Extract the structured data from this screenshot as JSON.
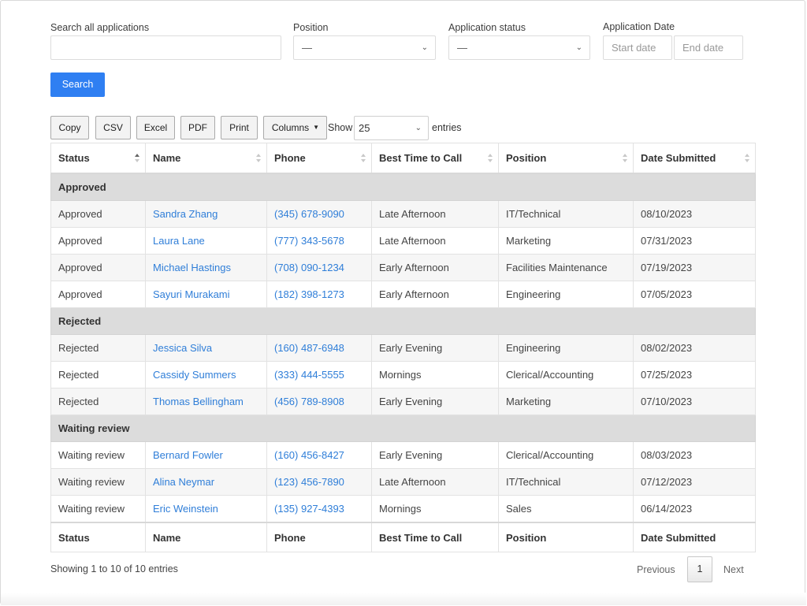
{
  "filters": {
    "search_label": "Search all applications",
    "search_value": "",
    "position_label": "Position",
    "position_value": "—",
    "status_label": "Application status",
    "status_value": "—",
    "date_label": "Application Date",
    "start_placeholder": "Start date",
    "end_placeholder": "End date",
    "search_button": "Search"
  },
  "toolbar": {
    "buttons": [
      "Copy",
      "CSV",
      "Excel",
      "PDF",
      "Print",
      "Columns"
    ],
    "show_label": "Show",
    "page_length": "25",
    "entries_label": "entries"
  },
  "table": {
    "headers": [
      "Status",
      "Name",
      "Phone",
      "Best Time to Call",
      "Position",
      "Date Submitted"
    ],
    "sort_active_column": "Status",
    "groups": [
      {
        "label": "Approved",
        "rows": [
          [
            "Approved",
            "Sandra Zhang",
            "(345) 678-9090",
            "Late Afternoon",
            "IT/Technical",
            "08/10/2023"
          ],
          [
            "Approved",
            "Laura Lane",
            "(777) 343-5678",
            "Late Afternoon",
            "Marketing",
            "07/31/2023"
          ],
          [
            "Approved",
            "Michael Hastings",
            "(708) 090-1234",
            "Early Afternoon",
            "Facilities Maintenance",
            "07/19/2023"
          ],
          [
            "Approved",
            "Sayuri Murakami",
            "(182) 398-1273",
            "Early Afternoon",
            "Engineering",
            "07/05/2023"
          ]
        ]
      },
      {
        "label": "Rejected",
        "rows": [
          [
            "Rejected",
            "Jessica Silva",
            "(160) 487-6948",
            "Early Evening",
            "Engineering",
            "08/02/2023"
          ],
          [
            "Rejected",
            "Cassidy Summers",
            "(333) 444-5555",
            "Mornings",
            "Clerical/Accounting",
            "07/25/2023"
          ],
          [
            "Rejected",
            "Thomas Bellingham",
            "(456) 789-8908",
            "Early Evening",
            "Marketing",
            "07/10/2023"
          ]
        ]
      },
      {
        "label": "Waiting review",
        "rows": [
          [
            "Waiting review",
            "Bernard Fowler",
            "(160) 456-8427",
            "Early Evening",
            "Clerical/Accounting",
            "08/03/2023"
          ],
          [
            "Waiting review",
            "Alina Neymar",
            "(123) 456-7890",
            "Late Afternoon",
            "IT/Technical",
            "07/12/2023"
          ],
          [
            "Waiting review",
            "Eric Weinstein",
            "(135) 927-4393",
            "Mornings",
            "Sales",
            "06/14/2023"
          ]
        ]
      }
    ]
  },
  "footer": {
    "info": "Showing 1 to 10 of 10 entries",
    "previous": "Previous",
    "current_page": "1",
    "next": "Next"
  },
  "colors": {
    "accent": "#2f7ff2",
    "link": "#2f7ed8",
    "group_bg": "#dcdcdc",
    "stripe_bg": "#f6f6f6"
  }
}
